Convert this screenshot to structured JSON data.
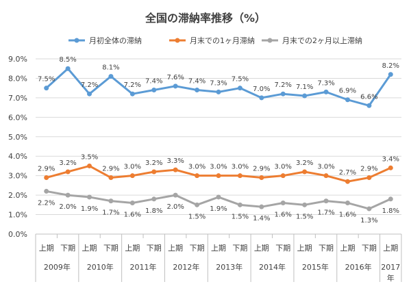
{
  "chart_data": {
    "type": "line",
    "title": "全国の滞納率推移（%）",
    "categories": [
      "上期",
      "下期",
      "上期",
      "下期",
      "上期",
      "下期",
      "上期",
      "下期",
      "上期",
      "下期",
      "上期",
      "下期",
      "上期",
      "下期",
      "上期",
      "下期",
      "上期"
    ],
    "years": [
      {
        "label": "2009年",
        "span": 2
      },
      {
        "label": "2010年",
        "span": 2
      },
      {
        "label": "2011年",
        "span": 2
      },
      {
        "label": "2012年",
        "span": 2
      },
      {
        "label": "2013年",
        "span": 2
      },
      {
        "label": "2014年",
        "span": 2
      },
      {
        "label": "2015年",
        "span": 2
      },
      {
        "label": "2016年",
        "span": 2
      },
      {
        "label": "2017年",
        "span": 1
      }
    ],
    "ylim": [
      0,
      9
    ],
    "yticks": [
      "0.0%",
      "1.0%",
      "2.0%",
      "3.0%",
      "4.0%",
      "5.0%",
      "6.0%",
      "7.0%",
      "8.0%",
      "9.0%"
    ],
    "legend_position": "top",
    "series": [
      {
        "name": "月初全体の滞納",
        "color": "#5b9bd5",
        "label_pos": "above",
        "values": [
          7.5,
          8.5,
          7.2,
          8.1,
          7.2,
          7.4,
          7.6,
          7.4,
          7.3,
          7.5,
          7.0,
          7.2,
          7.1,
          7.3,
          6.9,
          6.6,
          8.2
        ],
        "labels": [
          "7.5%",
          "8.5%",
          "7.2%",
          "8.1%",
          "7.2%",
          "7.4%",
          "7.6%",
          "7.4%",
          "7.3%",
          "7.5%",
          "7.0%",
          "7.2%",
          "7.1%",
          "7.3%",
          "6.9%",
          "6.6%",
          "8.2%"
        ]
      },
      {
        "name": "月末での1ヶ月滞納",
        "color": "#ed7d31",
        "label_pos": "above",
        "values": [
          2.9,
          3.2,
          3.5,
          2.9,
          3.0,
          3.2,
          3.3,
          3.0,
          3.0,
          3.0,
          2.9,
          3.0,
          3.2,
          3.0,
          2.7,
          2.9,
          3.4
        ],
        "labels": [
          "2.9%",
          "3.2%",
          "3.5%",
          "2.9%",
          "3.0%",
          "3.2%",
          "3.3%",
          "3.0%",
          "3.0%",
          "3.0%",
          "2.9%",
          "3.0%",
          "3.2%",
          "3.0%",
          "2.7%",
          "2.9%",
          "3.4%"
        ]
      },
      {
        "name": "月末での2ヶ月以上滞納",
        "color": "#a5a5a5",
        "label_pos": "below",
        "values": [
          2.2,
          2.0,
          1.9,
          1.7,
          1.6,
          1.8,
          2.0,
          1.5,
          1.9,
          1.5,
          1.4,
          1.6,
          1.5,
          1.7,
          1.6,
          1.3,
          1.8
        ],
        "labels": [
          "2.2%",
          "2.0%",
          "1.9%",
          "1.7%",
          "1.6%",
          "1.8%",
          "2.0%",
          "1.5%",
          "1.9%",
          "1.5%",
          "1.4%",
          "1.6%",
          "1.5%",
          "1.7%",
          "1.6%",
          "1.3%",
          "1.8%"
        ]
      }
    ]
  }
}
